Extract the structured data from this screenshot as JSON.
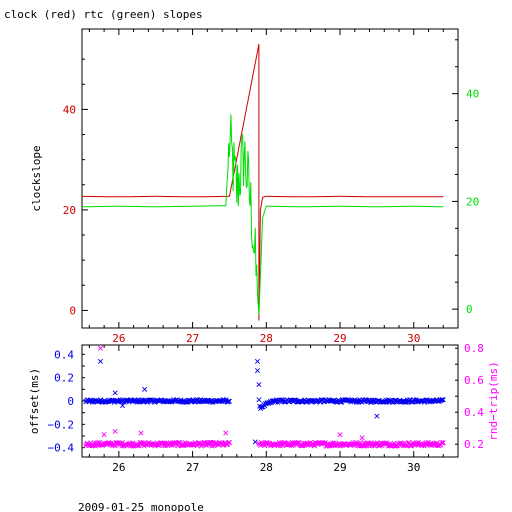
{
  "title": "clock (red) rtc (green) slopes",
  "footer": "2009-01-25 monopole",
  "colors": {
    "clock": "#cc0000",
    "rtc": "#00dd00",
    "offset": "#0000ee",
    "rndtrip": "#ff00ff",
    "axis": "#000000"
  },
  "chart_data": [
    {
      "type": "line",
      "title": "clock (red) rtc (green) slopes",
      "xlim": [
        25.5,
        30.6
      ],
      "x_ticks": [
        26,
        27,
        28,
        29,
        30
      ],
      "ylabel": "clockslope",
      "ylim": [
        -3.5,
        56
      ],
      "y_ticks": [
        0,
        20,
        40
      ],
      "y2lim": [
        -3.5,
        52
      ],
      "y2_ticks": [
        0,
        20,
        40
      ],
      "grid": false,
      "series": [
        {
          "name": "clock",
          "axis": "left",
          "x": [
            25.5,
            26.0,
            26.5,
            27.0,
            27.5,
            27.9,
            27.9,
            27.92,
            27.95,
            28.0,
            28.5,
            29.0,
            29.5,
            30.0,
            30.4
          ],
          "y": [
            22.7,
            22.6,
            22.7,
            22.6,
            22.7,
            53.0,
            -2.0,
            20.0,
            22.5,
            22.7,
            22.6,
            22.7,
            22.6,
            22.6,
            22.6
          ]
        },
        {
          "name": "rtc",
          "axis": "right",
          "x": [
            25.5,
            26.0,
            26.5,
            27.0,
            27.45,
            27.5,
            27.6,
            27.7,
            27.8,
            27.9,
            27.95,
            28.0,
            28.5,
            29.0,
            29.5,
            30.0,
            30.4
          ],
          "y": [
            19.0,
            19.1,
            19.0,
            19.1,
            19.2,
            31.0,
            22.0,
            29.0,
            18.0,
            -1.0,
            17.0,
            19.1,
            19.0,
            19.1,
            19.0,
            19.1,
            19.0
          ]
        }
      ]
    },
    {
      "type": "scatter",
      "xlim": [
        25.5,
        30.6
      ],
      "x_ticks": [
        26,
        27,
        28,
        29,
        30
      ],
      "ylabel": "offset(ms)",
      "ylim": [
        -0.48,
        0.48
      ],
      "y_ticks": [
        -0.4,
        -0.2,
        0,
        0.2,
        0.4
      ],
      "y2label": "rnd−trip(ms)",
      "y2lim": [
        0.12,
        0.82
      ],
      "y2_ticks": [
        0.2,
        0.4,
        0.6,
        0.8
      ],
      "grid": false,
      "series": [
        {
          "name": "offset",
          "axis": "left",
          "segments": [
            [
              25.55,
              27.5,
              0.0
            ],
            [
              27.9,
              30.4,
              0.0
            ]
          ],
          "outliers": [
            [
              25.75,
              0.34
            ],
            [
              25.95,
              0.07
            ],
            [
              26.35,
              0.1
            ],
            [
              26.05,
              -0.04
            ],
            [
              27.88,
              0.34
            ],
            [
              27.88,
              0.26
            ],
            [
              27.9,
              0.14
            ],
            [
              27.85,
              -0.35
            ],
            [
              29.5,
              -0.13
            ]
          ]
        },
        {
          "name": "rndtrip",
          "axis": "right",
          "segments": [
            [
              25.55,
              27.5,
              0.2
            ],
            [
              27.9,
              30.4,
              0.2
            ]
          ],
          "outliers": [
            [
              25.75,
              0.8
            ],
            [
              25.8,
              0.26
            ],
            [
              25.95,
              0.28
            ],
            [
              26.3,
              0.27
            ],
            [
              27.45,
              0.27
            ],
            [
              29.0,
              0.26
            ],
            [
              29.3,
              0.24
            ]
          ]
        }
      ]
    }
  ]
}
